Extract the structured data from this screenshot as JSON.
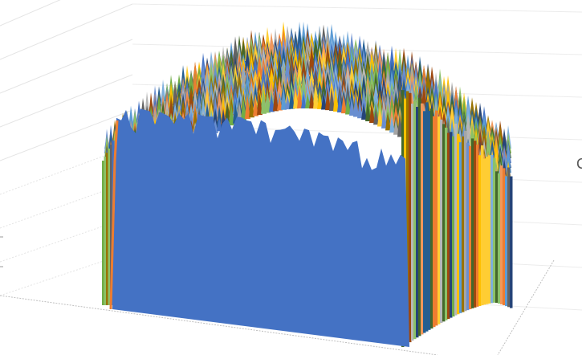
{
  "chart_data": {
    "type": "surface",
    "subtype": "3d-surface",
    "title_visible_fragment": "C",
    "grid": true,
    "legend": "none visible",
    "palette": [
      "#4472C4",
      "#ED7D31",
      "#A5A5A5",
      "#FFC000",
      "#5B9BD5",
      "#70AD47",
      "#264478",
      "#9E480E",
      "#636363",
      "#997300",
      "#255E91",
      "#43682B",
      "#698ED0",
      "#F1975A",
      "#B7B7B7",
      "#FFCD33",
      "#7CAFDD",
      "#8CC168"
    ],
    "front_face_color": "#4472C4"
  }
}
